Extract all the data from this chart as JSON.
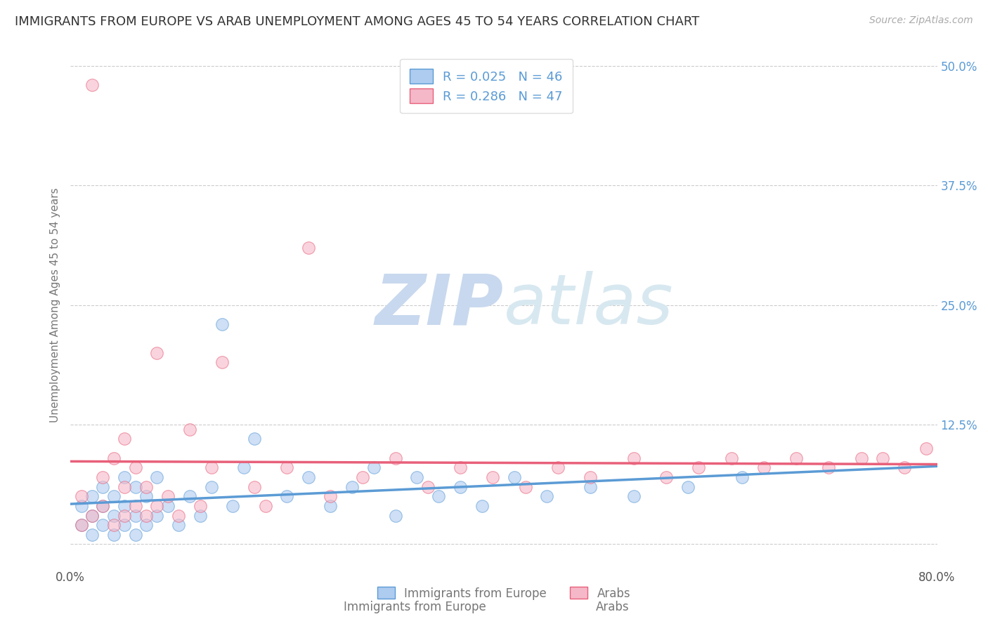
{
  "title": "IMMIGRANTS FROM EUROPE VS ARAB UNEMPLOYMENT AMONG AGES 45 TO 54 YEARS CORRELATION CHART",
  "source": "Source: ZipAtlas.com",
  "ylabel": "Unemployment Among Ages 45 to 54 years",
  "xlim": [
    0.0,
    0.8
  ],
  "ylim": [
    -0.025,
    0.525
  ],
  "xticks": [
    0.0,
    0.8
  ],
  "xticklabels": [
    "0.0%",
    "80.0%"
  ],
  "yticks": [
    0.0,
    0.125,
    0.25,
    0.375,
    0.5
  ],
  "yticklabels": [
    "",
    "12.5%",
    "25.0%",
    "37.5%",
    "50.0%"
  ],
  "grid_yticks": [
    0.0,
    0.125,
    0.25,
    0.375,
    0.5
  ],
  "grid_color": "#cccccc",
  "background_color": "#ffffff",
  "title_fontsize": 13,
  "axis_label_fontsize": 11,
  "tick_fontsize": 12,
  "legend_label1": "R = 0.025   N = 46",
  "legend_label2": "R = 0.286   N = 47",
  "color_europe": "#aecbf0",
  "color_arab": "#f5b8c8",
  "color_europe_line": "#5b9bd5",
  "color_arab_line": "#e8607a",
  "color_tick": "#5b9bd5",
  "color_legend_text": "#5b9bd5",
  "europe_x": [
    0.01,
    0.01,
    0.02,
    0.02,
    0.02,
    0.03,
    0.03,
    0.03,
    0.04,
    0.04,
    0.04,
    0.05,
    0.05,
    0.05,
    0.06,
    0.06,
    0.06,
    0.07,
    0.07,
    0.08,
    0.08,
    0.09,
    0.1,
    0.11,
    0.12,
    0.13,
    0.14,
    0.15,
    0.16,
    0.17,
    0.2,
    0.22,
    0.24,
    0.26,
    0.28,
    0.3,
    0.32,
    0.34,
    0.36,
    0.38,
    0.41,
    0.44,
    0.48,
    0.52,
    0.57,
    0.62
  ],
  "europe_y": [
    0.02,
    0.04,
    0.01,
    0.03,
    0.05,
    0.02,
    0.04,
    0.06,
    0.01,
    0.03,
    0.05,
    0.02,
    0.04,
    0.07,
    0.01,
    0.03,
    0.06,
    0.02,
    0.05,
    0.03,
    0.07,
    0.04,
    0.02,
    0.05,
    0.03,
    0.06,
    0.23,
    0.04,
    0.08,
    0.11,
    0.05,
    0.07,
    0.04,
    0.06,
    0.08,
    0.03,
    0.07,
    0.05,
    0.06,
    0.04,
    0.07,
    0.05,
    0.06,
    0.05,
    0.06,
    0.07
  ],
  "arab_x": [
    0.01,
    0.01,
    0.02,
    0.02,
    0.03,
    0.03,
    0.04,
    0.04,
    0.05,
    0.05,
    0.05,
    0.06,
    0.06,
    0.07,
    0.07,
    0.08,
    0.08,
    0.09,
    0.1,
    0.11,
    0.12,
    0.13,
    0.14,
    0.17,
    0.18,
    0.2,
    0.22,
    0.24,
    0.27,
    0.3,
    0.33,
    0.36,
    0.39,
    0.42,
    0.45,
    0.48,
    0.52,
    0.55,
    0.58,
    0.61,
    0.64,
    0.67,
    0.7,
    0.73,
    0.75,
    0.77,
    0.79
  ],
  "arab_y": [
    0.02,
    0.05,
    0.03,
    0.48,
    0.04,
    0.07,
    0.02,
    0.09,
    0.03,
    0.06,
    0.11,
    0.04,
    0.08,
    0.03,
    0.06,
    0.04,
    0.2,
    0.05,
    0.03,
    0.12,
    0.04,
    0.08,
    0.19,
    0.06,
    0.04,
    0.08,
    0.31,
    0.05,
    0.07,
    0.09,
    0.06,
    0.08,
    0.07,
    0.06,
    0.08,
    0.07,
    0.09,
    0.07,
    0.08,
    0.09,
    0.08,
    0.09,
    0.08,
    0.09,
    0.09,
    0.08,
    0.1
  ],
  "watermark_zip": "ZIP",
  "watermark_atlas": "atlas",
  "watermark_color": "#c8d8ee"
}
